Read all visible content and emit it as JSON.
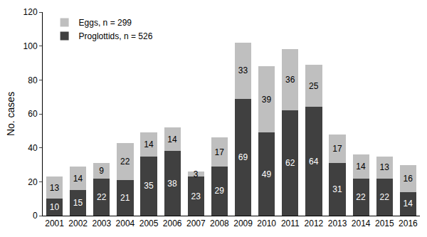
{
  "chart_data": {
    "type": "bar",
    "y_label": "No. cases",
    "categories": [
      "2001",
      "2002",
      "2003",
      "2004",
      "2005",
      "2006",
      "2007",
      "2008",
      "2009",
      "2010",
      "2011",
      "2012",
      "2013",
      "2014",
      "2015",
      "2016"
    ],
    "series": [
      {
        "name": "Proglottids, n = 526",
        "color": "#404040",
        "values": [
          10,
          15,
          22,
          21,
          35,
          38,
          23,
          29,
          69,
          49,
          62,
          64,
          31,
          22,
          22,
          14
        ]
      },
      {
        "name": "Eggs, n = 299",
        "color": "#bfbfbf",
        "values": [
          13,
          14,
          9,
          22,
          14,
          14,
          3,
          17,
          33,
          39,
          36,
          25,
          17,
          14,
          13,
          16
        ]
      }
    ],
    "stacked": true,
    "data_labels": true,
    "legend": "top-left",
    "grid": false,
    "ylim": [
      0,
      120
    ],
    "yticks": [
      0,
      20,
      40,
      60,
      80,
      100,
      120
    ]
  }
}
